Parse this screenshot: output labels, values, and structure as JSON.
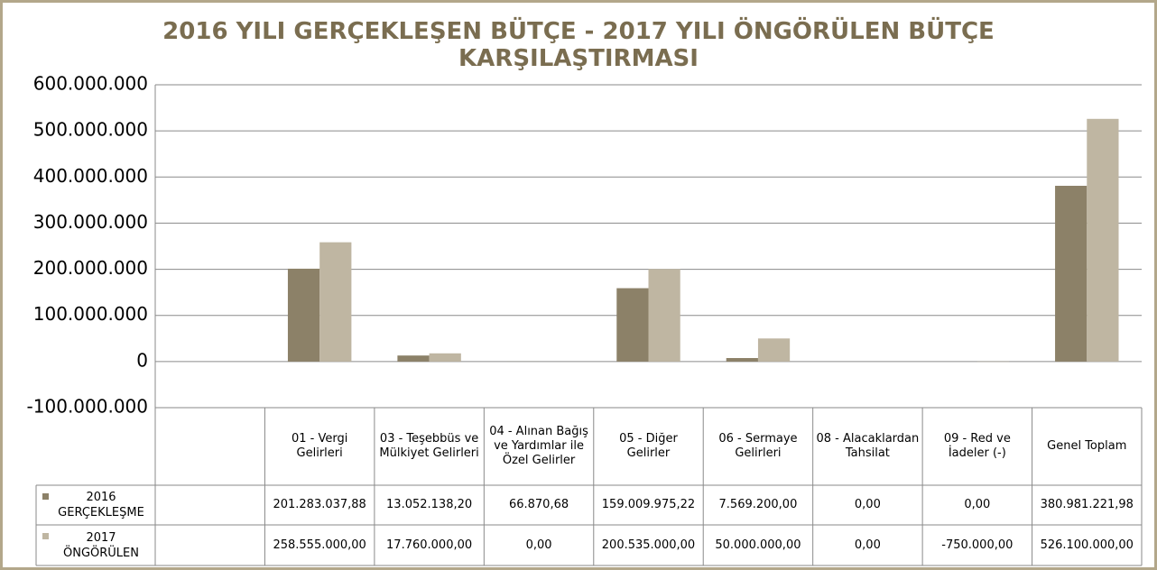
{
  "chart_data": {
    "type": "bar",
    "title": "2016 YILI GERÇEKLEŞEN BÜTÇE - 2017 YILI ÖNGÖRÜLEN BÜTÇE KARŞILAŞTIRMASI",
    "categories": [
      null,
      "01 - Vergi Gelirleri",
      "03 - Teşebbüs ve Mülkiyet Gelirleri",
      "04 - Alınan Bağış ve Yardımlar ile Özel Gelirler",
      "05 - Diğer Gelirler",
      "06 - Sermaye Gelirleri",
      "08 - Alacaklardan Tahsilat",
      "09 - Red ve İadeler (-)",
      "Genel Toplam"
    ],
    "series": [
      {
        "name": "2016 GERÇEKLEŞME",
        "color": "#8c8168",
        "values": [
          null,
          201283037.88,
          13052138.2,
          66870.68,
          159009975.22,
          7569200,
          0,
          0,
          380981221.98
        ],
        "value_labels": [
          null,
          "201.283.037,88",
          "13.052.138,20",
          "66.870,68",
          "159.009.975,22",
          "7.569.200,00",
          "0,00",
          "0,00",
          "380.981.221,98"
        ]
      },
      {
        "name": "2017 ÖNGÖRÜLEN",
        "color": "#bfb6a2",
        "values": [
          null,
          258555000,
          17760000,
          0,
          200535000,
          50000000,
          0,
          -750000,
          526100000
        ],
        "value_labels": [
          null,
          "258.555.000,00",
          "17.760.000,00",
          "0,00",
          "200.535.000,00",
          "50.000.000,00",
          "0,00",
          "-750.000,00",
          "526.100.000,00"
        ]
      }
    ],
    "ylim": [
      -100000000,
      600000000
    ],
    "yticks": [
      {
        "value": -100000000,
        "label": "-100.000.000"
      },
      0,
      {
        "value": 100000000,
        "label": "100.000.000"
      },
      {
        "value": 200000000,
        "label": "200.000.000"
      },
      {
        "value": 300000000,
        "label": "300.000.000"
      },
      {
        "value": 400000000,
        "label": "400.000.000"
      },
      {
        "value": 500000000,
        "label": "500.000.000"
      },
      {
        "value": 600000000,
        "label": "600.000.000"
      }
    ],
    "grid": true
  }
}
